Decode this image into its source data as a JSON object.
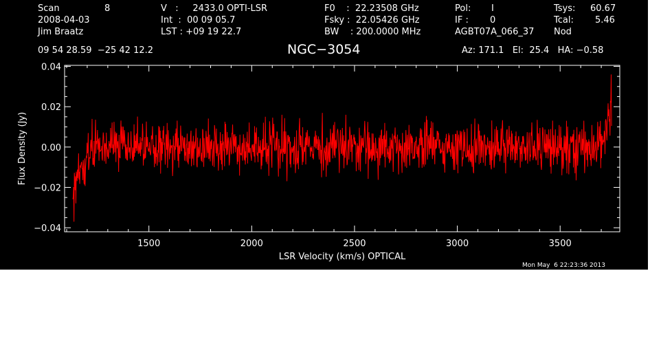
{
  "header": {
    "scan_label": "Scan",
    "scan_value": "8",
    "date": "2008-04-03",
    "observer": "Jim Braatz",
    "v_line": "V   :     2433.0 OPTI-LSR",
    "int_line": "Int  :  00 09 05.7",
    "lst_line": "LST : +09 19 22.7",
    "f0_line": "F0    :  22.23508 GHz",
    "fsky_line": "Fsky :  22.05426 GHz",
    "bw_line": "BW    : 200.0000 MHz",
    "pol_label": "Pol:",
    "pol_value": "I",
    "if_label": "IF :",
    "if_value": "0",
    "project": "AGBT07A_066_37",
    "tsys_label": "Tsys:",
    "tsys_value": "60.67",
    "tcal_label": "Tcal:",
    "tcal_value": "5.46",
    "mode": "Nod",
    "coords": "09 54 28.59  −25 42 12.2",
    "pointing": "Az: 171.1   El:  25.4   HA: −0.58",
    "timestamp": "Mon May  6 22:23:36 2013"
  },
  "colors": {
    "background": "#000000",
    "foreground": "#ffffff",
    "spectrum": "#ff0000"
  },
  "chart_data": {
    "type": "line",
    "title": "NGC−3054",
    "xlabel": "LSR Velocity (km/s) OPTICAL",
    "ylabel": "Flux Density (Jy)",
    "xlim": [
      1090,
      3790
    ],
    "ylim": [
      -0.042,
      0.0405
    ],
    "x_ticks": [
      1500,
      2000,
      2500,
      3000,
      3500
    ],
    "x_tick_labels": [
      "1500",
      "2000",
      "2500",
      "3000",
      "3500"
    ],
    "y_ticks": [
      -0.04,
      -0.02,
      0.0,
      0.02,
      0.04
    ],
    "y_tick_labels": [
      "−0.04",
      "−0.02",
      "0.00",
      "0.02",
      "0.04"
    ],
    "grid": false,
    "legend": "none",
    "series": [
      {
        "x_start": 1130,
        "x_end": 3750,
        "points": 1400,
        "noise_rms_jy": 0.008,
        "baseline_jy": 0.0,
        "low_edge_jy": -0.037,
        "high_edge_jy": 0.036
      }
    ]
  }
}
